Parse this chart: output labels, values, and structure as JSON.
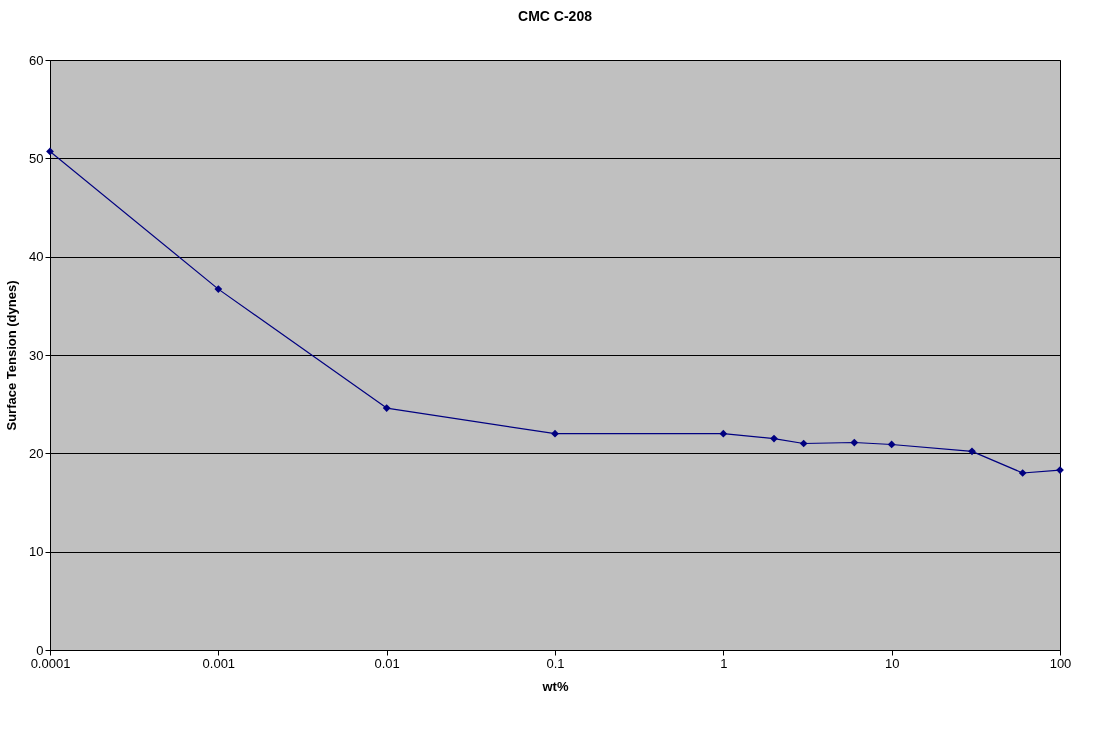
{
  "chart_data": {
    "type": "line",
    "title": "CMC C-208",
    "xlabel": "wt%",
    "ylabel": "Surface Tension (dynes)",
    "x": [
      0.0001,
      0.001,
      0.01,
      0.1,
      1,
      2,
      3,
      6,
      10,
      30,
      60,
      100
    ],
    "series": [
      {
        "color": "#000080",
        "values": [
          50.7,
          36.7,
          24.6,
          22.0,
          22.0,
          21.5,
          21.0,
          21.1,
          20.9,
          20.2,
          18.0,
          18.3
        ]
      }
    ],
    "log": "x",
    "xlim": [
      0.0001,
      100
    ],
    "xticks": [
      0.0001,
      0.001,
      0.01,
      0.1,
      1,
      10,
      100
    ],
    "ylim": [
      0,
      60
    ],
    "yticks": [
      0,
      10,
      20,
      30,
      40,
      50,
      60
    ],
    "grid": "y",
    "marker": "diamond",
    "line_style": "solid"
  }
}
